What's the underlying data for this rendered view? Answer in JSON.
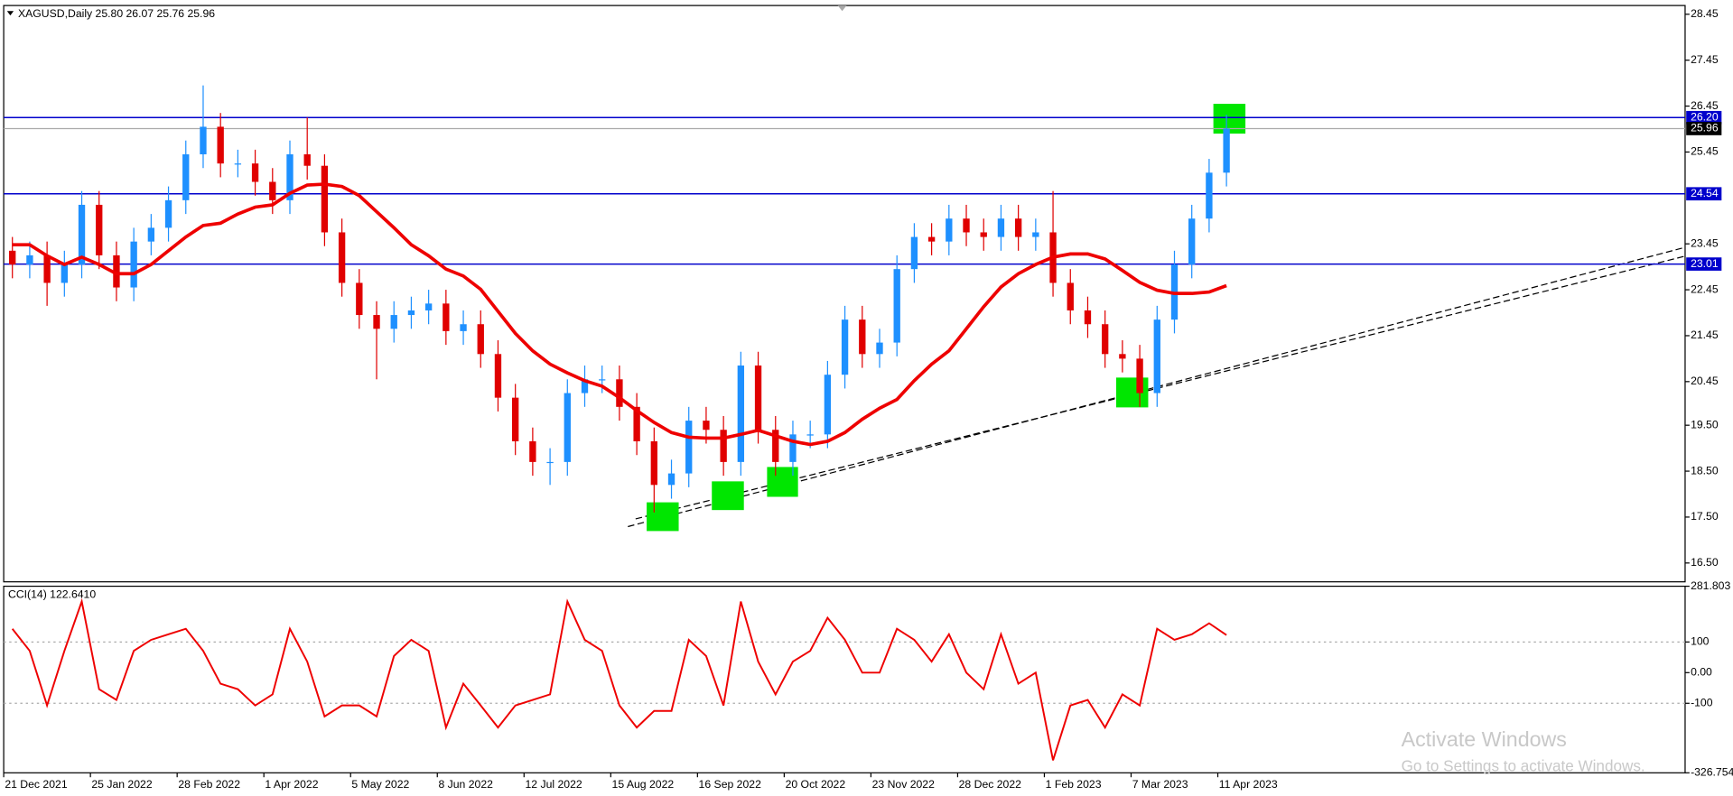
{
  "chart_data": [
    {
      "type": "candlestick",
      "title": "XAGUSD,Daily  25.80 26.07 25.76 25.96",
      "x": [
        "21 Dec 2021",
        null,
        null,
        null,
        null,
        "25 Jan 2022",
        null,
        null,
        null,
        null,
        "28 Feb 2022",
        null,
        null,
        null,
        null,
        "1 Apr 2022",
        null,
        null,
        null,
        null,
        "5 May 2022",
        null,
        null,
        null,
        null,
        "8 Jun 2022",
        null,
        null,
        null,
        null,
        "12 Jul 2022",
        null,
        null,
        null,
        null,
        "15 Aug 2022",
        null,
        null,
        null,
        null,
        "16 Sep 2022",
        null,
        null,
        null,
        null,
        "20 Oct 2022",
        null,
        null,
        null,
        null,
        "23 Nov 2022",
        null,
        null,
        null,
        null,
        "28 Dec 2022",
        null,
        null,
        null,
        null,
        "1 Feb 2023",
        null,
        null,
        null,
        null,
        "7 Mar 2023",
        null,
        null,
        null,
        null,
        "11 Apr 2023"
      ],
      "open": [
        23.3,
        23.0,
        23.2,
        22.6,
        23.0,
        24.3,
        23.2,
        22.5,
        23.5,
        23.8,
        24.4,
        25.4,
        26.0,
        25.2,
        25.2,
        24.8,
        24.4,
        25.4,
        25.15,
        23.7,
        22.6,
        21.9,
        21.6,
        21.9,
        22.0,
        22.15,
        21.55,
        21.7,
        21.05,
        20.1,
        19.15,
        18.7,
        18.7,
        20.2,
        20.5,
        20.5,
        19.9,
        19.15,
        18.2,
        18.45,
        19.6,
        19.4,
        18.7,
        20.8,
        19.4,
        18.7,
        19.3,
        19.3,
        20.6,
        21.8,
        21.05,
        21.3,
        22.9,
        23.6,
        23.5,
        24.0,
        23.7,
        23.6,
        24.0,
        23.6,
        23.7,
        22.6,
        22.0,
        21.7,
        21.05,
        20.95,
        20.2,
        21.8,
        23.0,
        24.0,
        25.0
      ],
      "high": [
        23.6,
        23.5,
        23.5,
        23.3,
        24.6,
        24.6,
        23.5,
        23.8,
        24.1,
        24.7,
        25.7,
        26.9,
        26.3,
        25.5,
        25.5,
        25.1,
        25.7,
        26.2,
        25.4,
        24.0,
        22.9,
        22.2,
        22.2,
        22.3,
        22.45,
        22.45,
        22.0,
        22.0,
        21.35,
        20.4,
        19.45,
        19.0,
        20.5,
        20.8,
        20.8,
        20.8,
        20.2,
        19.45,
        18.75,
        19.9,
        19.9,
        19.7,
        21.1,
        21.1,
        19.7,
        19.6,
        19.6,
        20.9,
        22.1,
        22.1,
        21.6,
        23.2,
        23.9,
        23.9,
        24.3,
        24.3,
        24.0,
        24.3,
        24.3,
        24.0,
        24.6,
        22.9,
        22.3,
        22.0,
        21.35,
        21.25,
        22.1,
        23.3,
        24.3,
        25.3,
        26.26
      ],
      "low": [
        22.7,
        22.7,
        22.1,
        22.3,
        22.7,
        22.9,
        22.2,
        22.2,
        23.2,
        23.5,
        24.1,
        25.1,
        24.9,
        24.9,
        24.5,
        24.1,
        24.1,
        24.85,
        23.4,
        22.3,
        21.6,
        20.5,
        21.3,
        21.6,
        21.7,
        21.25,
        21.25,
        20.75,
        19.8,
        18.85,
        18.4,
        18.2,
        18.4,
        19.9,
        20.2,
        19.6,
        18.85,
        17.6,
        17.9,
        18.15,
        19.1,
        18.4,
        18.4,
        19.1,
        18.4,
        18.4,
        19.0,
        19.0,
        20.3,
        20.75,
        20.75,
        21.0,
        22.6,
        23.2,
        23.2,
        23.4,
        23.3,
        23.3,
        23.3,
        23.3,
        22.3,
        21.7,
        21.4,
        20.75,
        20.65,
        19.9,
        19.9,
        21.5,
        22.7,
        23.7,
        24.7
      ],
      "close": [
        23.0,
        23.2,
        22.6,
        23.0,
        24.3,
        23.2,
        22.5,
        23.5,
        23.8,
        24.4,
        25.4,
        26.0,
        25.2,
        25.2,
        24.8,
        24.4,
        25.4,
        25.15,
        23.7,
        22.6,
        21.9,
        21.6,
        21.9,
        22.0,
        22.15,
        21.55,
        21.7,
        21.05,
        20.1,
        19.15,
        18.7,
        18.7,
        20.2,
        20.5,
        20.5,
        19.9,
        19.15,
        18.2,
        18.45,
        19.6,
        19.4,
        18.7,
        20.8,
        19.4,
        18.7,
        19.3,
        19.3,
        20.6,
        21.8,
        21.05,
        21.3,
        22.9,
        23.6,
        23.5,
        24.0,
        23.7,
        23.6,
        24.0,
        23.6,
        23.7,
        22.6,
        22.0,
        21.7,
        21.05,
        20.95,
        20.2,
        21.8,
        23.0,
        24.0,
        25.0,
        25.96
      ],
      "up_color": "#1e90ff",
      "down_color": "#e00000",
      "ma": {
        "color": "#ee0000",
        "values": [
          23.43,
          23.43,
          23.19,
          23.0,
          23.16,
          23.0,
          22.8,
          22.8,
          23.0,
          23.3,
          23.6,
          23.85,
          23.9,
          24.1,
          24.25,
          24.3,
          24.55,
          24.73,
          24.75,
          24.7,
          24.5,
          24.15,
          23.8,
          23.43,
          23.19,
          22.9,
          22.75,
          22.46,
          21.98,
          21.5,
          21.12,
          20.83,
          20.64,
          20.47,
          20.35,
          20.1,
          19.82,
          19.56,
          19.34,
          19.24,
          19.22,
          19.22,
          19.3,
          19.39,
          19.27,
          19.15,
          19.08,
          19.15,
          19.34,
          19.63,
          19.87,
          20.06,
          20.47,
          20.83,
          21.12,
          21.6,
          22.08,
          22.51,
          22.8,
          23.0,
          23.16,
          23.23,
          23.23,
          23.12,
          22.87,
          22.61,
          22.44,
          22.37,
          22.37,
          22.4,
          22.54
        ]
      },
      "levels": [
        {
          "value": 26.2,
          "label": "26.20"
        },
        24.54,
        23.01
      ],
      "level_color": "#0000cc",
      "current_price": 25.96,
      "ylim": [
        16.09,
        28.64
      ],
      "yticks": [
        28.45,
        27.45,
        26.45,
        25.45,
        23.45,
        22.45,
        21.45,
        20.45,
        {
          "value": 19.5,
          "label": "19.50"
        },
        {
          "value": 18.5,
          "label": "18.50"
        },
        {
          "value": 17.5,
          "label": "17.50"
        },
        {
          "value": 16.5,
          "label": "16.50"
        }
      ]
    },
    {
      "type": "line",
      "title": "CCI(14) 122.6410",
      "color": "#ee0000",
      "values": [
        143,
        71,
        -107,
        71,
        232,
        -54,
        -89,
        71,
        107,
        125,
        143,
        71,
        -36,
        -54,
        -107,
        -71,
        143,
        36,
        -143,
        -107,
        -107,
        -143,
        54,
        107,
        71,
        -179,
        -36,
        -107,
        -179,
        -107,
        -89,
        -71,
        232,
        107,
        71,
        -107,
        -179,
        -125,
        -125,
        107,
        54,
        -107,
        232,
        36,
        -71,
        36,
        71,
        179,
        107,
        0,
        0,
        143,
        107,
        36,
        125,
        0,
        -54,
        125,
        -36,
        0,
        -286,
        -107,
        -89,
        -179,
        -71,
        -107,
        143,
        107,
        125,
        161,
        122.641
      ],
      "ylim": [
        -326.754,
        281.803
      ],
      "yticks": [
        281.803,
        100,
        {
          "value": 0,
          "label": "0.00"
        },
        -100,
        -326.754
      ],
      "grid": [
        100,
        -100
      ]
    }
  ],
  "watermark": {
    "title": "Activate Windows",
    "subtitle": "Go to Settings to activate Windows."
  }
}
